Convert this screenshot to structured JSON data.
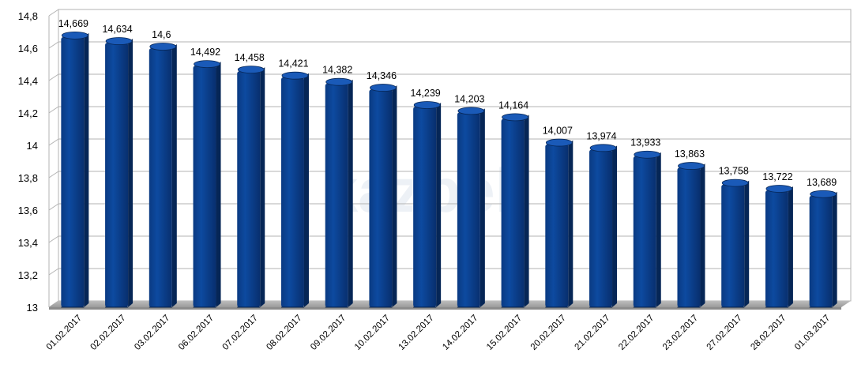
{
  "watermark": "kazbek",
  "chart_data": {
    "type": "bar",
    "title": "",
    "xlabel": "",
    "ylabel": "",
    "ylim": [
      13,
      14.8
    ],
    "y_ticks": [
      "13",
      "13,2",
      "13,4",
      "13,6",
      "13,8",
      "14",
      "14,2",
      "14,4",
      "14,6",
      "14,8"
    ],
    "grid": true,
    "bar_color": "#0b3f8c",
    "categories": [
      "01.02.2017",
      "02.02.2017",
      "03.02.2017",
      "06.02.2017",
      "07.02.2017",
      "08.02.2017",
      "09.02.2017",
      "10.02.2017",
      "13.02.2017",
      "14.02.2017",
      "15.02.2017",
      "20.02.2017",
      "21.02.2017",
      "22.02.2017",
      "23.02.2017",
      "27.02.2017",
      "28.02.2017",
      "01.03.2017"
    ],
    "values": [
      14.669,
      14.634,
      14.6,
      14.492,
      14.458,
      14.421,
      14.382,
      14.346,
      14.239,
      14.203,
      14.164,
      14.007,
      13.974,
      13.933,
      13.863,
      13.758,
      13.722,
      13.689
    ],
    "value_labels": [
      "14,669",
      "14,634",
      "14,6",
      "14,492",
      "14,458",
      "14,421",
      "14,382",
      "14,346",
      "14,239",
      "14,203",
      "14,164",
      "14,007",
      "13,974",
      "13,933",
      "13,863",
      "13,758",
      "13,722",
      "13,689"
    ]
  }
}
